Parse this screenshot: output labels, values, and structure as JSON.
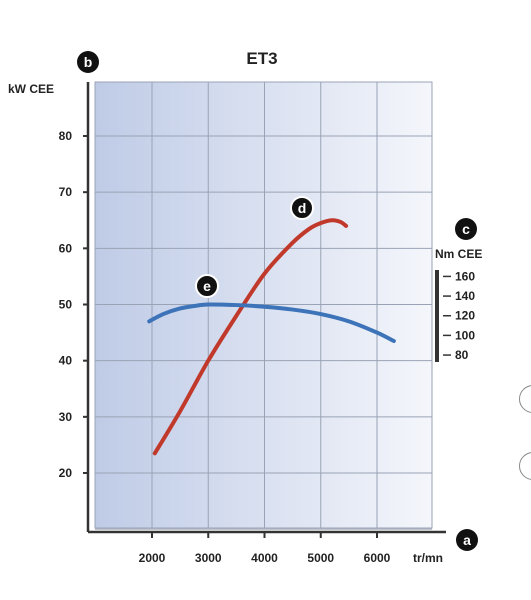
{
  "chart_data": {
    "type": "line",
    "title": "ET3",
    "xlabel": "tr/mn",
    "ylabel": "kW CEE",
    "y2label": "Nm CEE",
    "xlim": [
      900,
      6900
    ],
    "ylim": [
      10,
      90
    ],
    "x_ticks": [
      2000,
      3000,
      4000,
      5000,
      6000
    ],
    "y_ticks": [
      20,
      30,
      40,
      50,
      60,
      70,
      80
    ],
    "y2_ticks": [
      80,
      100,
      120,
      140,
      160
    ],
    "y2_range": [
      80,
      160
    ],
    "y2_map_left": [
      41,
      55
    ],
    "grid": true,
    "background_gradient": [
      "#bfcbe6",
      "#f4f6fb"
    ],
    "badges": {
      "left_axis": "b",
      "right_axis": "c",
      "x_axis": "a"
    },
    "series": [
      {
        "name": "",
        "badge": "d",
        "color": "#c0392b",
        "x": [
          2050,
          2500,
          3000,
          3500,
          4000,
          4500,
          4800,
          5000,
          5200,
          5350,
          5450
        ],
        "y": [
          23.5,
          31,
          40,
          48,
          55.5,
          61,
          63.5,
          64.5,
          65,
          64.7,
          64
        ]
      },
      {
        "name": "",
        "badge": "e",
        "color": "#3d73b8",
        "x": [
          1950,
          2200,
          2500,
          2800,
          3000,
          3500,
          4000,
          4500,
          5000,
          5500,
          6000,
          6300
        ],
        "y": [
          47,
          48.3,
          49.3,
          49.8,
          50,
          49.9,
          49.6,
          49.1,
          48.3,
          47,
          45,
          43.5
        ]
      }
    ]
  }
}
